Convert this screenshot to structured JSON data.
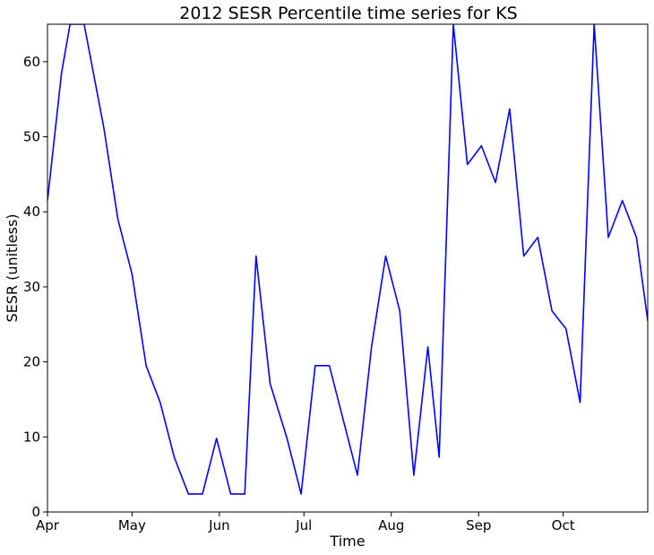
{
  "chart_data": {
    "type": "line",
    "title": "2012 SESR Percentile time series for KS",
    "xlabel": "Time",
    "ylabel": "SESR (unitless)",
    "xlim": [
      "2012-04-01",
      "2012-10-31"
    ],
    "ylim": [
      0,
      65
    ],
    "x_ticks": [
      {
        "date": "2012-04-01",
        "label": "Apr"
      },
      {
        "date": "2012-05-01",
        "label": "May"
      },
      {
        "date": "2012-06-01",
        "label": "Jun"
      },
      {
        "date": "2012-07-01",
        "label": "Jul"
      },
      {
        "date": "2012-08-01",
        "label": "Aug"
      },
      {
        "date": "2012-09-01",
        "label": "Sep"
      },
      {
        "date": "2012-10-01",
        "label": "Oct"
      }
    ],
    "y_ticks": [
      0,
      10,
      20,
      30,
      40,
      50,
      60
    ],
    "grid": false,
    "line_color": "#0000ff",
    "series": [
      {
        "x": [
          "2012-04-01",
          "2012-04-06",
          "2012-04-09",
          "2012-04-14",
          "2012-04-21",
          "2012-04-26",
          "2012-05-01",
          "2012-05-06",
          "2012-05-11",
          "2012-05-16",
          "2012-05-21",
          "2012-05-26",
          "2012-05-31",
          "2012-06-05",
          "2012-06-10",
          "2012-06-14",
          "2012-06-19",
          "2012-06-25",
          "2012-06-30",
          "2012-07-05",
          "2012-07-10",
          "2012-07-15",
          "2012-07-20",
          "2012-07-25",
          "2012-07-30",
          "2012-08-04",
          "2012-08-09",
          "2012-08-14",
          "2012-08-18",
          "2012-08-23",
          "2012-08-28",
          "2012-09-02",
          "2012-09-07",
          "2012-09-12",
          "2012-09-17",
          "2012-09-22",
          "2012-09-27",
          "2012-10-02",
          "2012-10-07",
          "2012-10-12",
          "2012-10-17",
          "2012-10-22",
          "2012-10-27",
          "2012-10-31"
        ],
        "y": [
          41.5,
          58.5,
          65,
          65,
          51.2,
          39,
          31.7,
          19.5,
          14.6,
          7.3,
          2.4,
          2.4,
          9.8,
          2.4,
          2.4,
          34.1,
          17.1,
          9.8,
          2.4,
          19.5,
          19.5,
          12.2,
          4.9,
          22,
          34.1,
          26.8,
          4.9,
          22,
          7.3,
          65,
          46.3,
          48.8,
          43.9,
          53.7,
          34.1,
          36.6,
          26.8,
          24.4,
          14.6,
          65,
          36.6,
          41.5,
          36.6,
          25.5
        ]
      }
    ]
  }
}
